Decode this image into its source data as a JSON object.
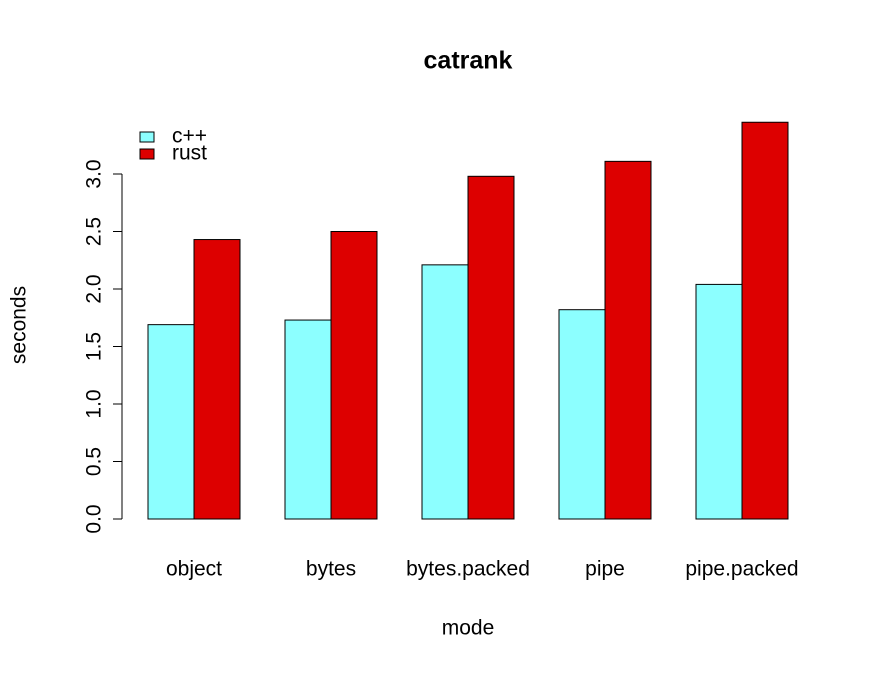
{
  "chart_data": {
    "type": "bar",
    "title": "catrank",
    "x_label": "mode",
    "y_label": "seconds",
    "categories": [
      "object",
      "bytes",
      "bytes.packed",
      "pipe",
      "pipe.packed"
    ],
    "series": [
      {
        "name": "c++",
        "color": "#8cffff",
        "values": [
          1.69,
          1.73,
          2.21,
          1.82,
          2.04
        ]
      },
      {
        "name": "rust",
        "color": "#dd0000",
        "values": [
          2.43,
          2.5,
          2.98,
          3.11,
          3.45
        ]
      }
    ],
    "ylim": [
      0,
      3.5
    ],
    "yticks": [
      {
        "value": 0,
        "label": "0.0"
      },
      {
        "value": 0.5,
        "label": "0.5"
      },
      {
        "value": 1,
        "label": "1.0"
      },
      {
        "value": 1.5,
        "label": "1.5"
      },
      {
        "value": 2,
        "label": "2.0"
      },
      {
        "value": 2.5,
        "label": "2.5"
      },
      {
        "value": 3,
        "label": "3.0"
      }
    ],
    "legend": "top-left"
  }
}
